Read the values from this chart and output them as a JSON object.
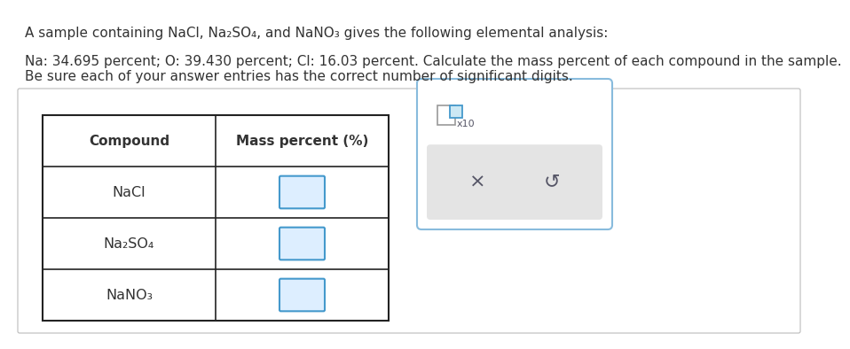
{
  "line1": "A sample containing NaCl, Na₂SO₄, and NaNO₃ gives the following elemental analysis:",
  "line2": "Na: 34.695 percent; O: 39.430 percent; Cl: 16.03 percent. Calculate the mass percent of each compound in the sample.",
  "line3": "Be sure each of your answer entries has the correct number of significant digits.",
  "col1_header": "Compound",
  "col2_header": "Mass percent (%)",
  "compounds": [
    "NaCl",
    "Na₂SO₄",
    "NaNO₃"
  ],
  "bg_color": "#ffffff",
  "text_color": "#333333",
  "table_line_color": "#222222",
  "input_fill": "#ddeeff",
  "input_border": "#4499cc",
  "panel_border": "#88bbdd",
  "panel_fill": "#ffffff",
  "btn_fill": "#e4e4e4",
  "btn_text": "#555566",
  "gray_sq_border": "#999999",
  "blue_sq_border": "#4499cc",
  "blue_sq_fill": "#cce8f4"
}
